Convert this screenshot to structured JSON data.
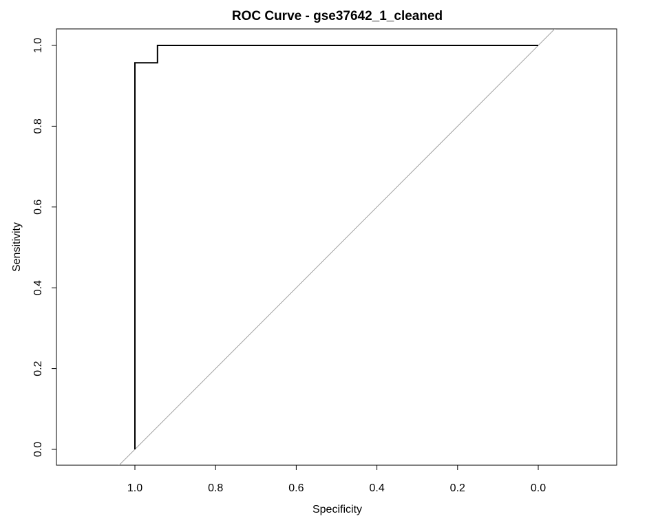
{
  "chart_data": {
    "type": "line",
    "title": "ROC Curve - gse37642_1_cleaned",
    "xlabel": "Specificity",
    "ylabel": "Sensitivity",
    "x_reversed": true,
    "xlim": [
      1.2,
      -0.2
    ],
    "ylim": [
      -0.04,
      1.04
    ],
    "x_ticks": [
      1.0,
      0.8,
      0.6,
      0.4,
      0.2,
      0.0
    ],
    "x_tick_labels": [
      "1.0",
      "0.8",
      "0.6",
      "0.4",
      "0.2",
      "0.0"
    ],
    "y_ticks": [
      0.0,
      0.2,
      0.4,
      0.6,
      0.8,
      1.0
    ],
    "y_tick_labels": [
      "0.0",
      "0.2",
      "0.4",
      "0.6",
      "0.8",
      "1.0"
    ],
    "grid": false,
    "series": [
      {
        "x": [
          1.0,
          1.0,
          0.944,
          0.944,
          0.0
        ],
        "y": [
          0.0,
          0.957,
          0.957,
          1.0,
          1.0
        ],
        "color": "#000000"
      }
    ],
    "reference_line": {
      "x": [
        1.0,
        0.0
      ],
      "y": [
        0.0,
        1.0
      ],
      "color": "#a0a0a0"
    }
  }
}
